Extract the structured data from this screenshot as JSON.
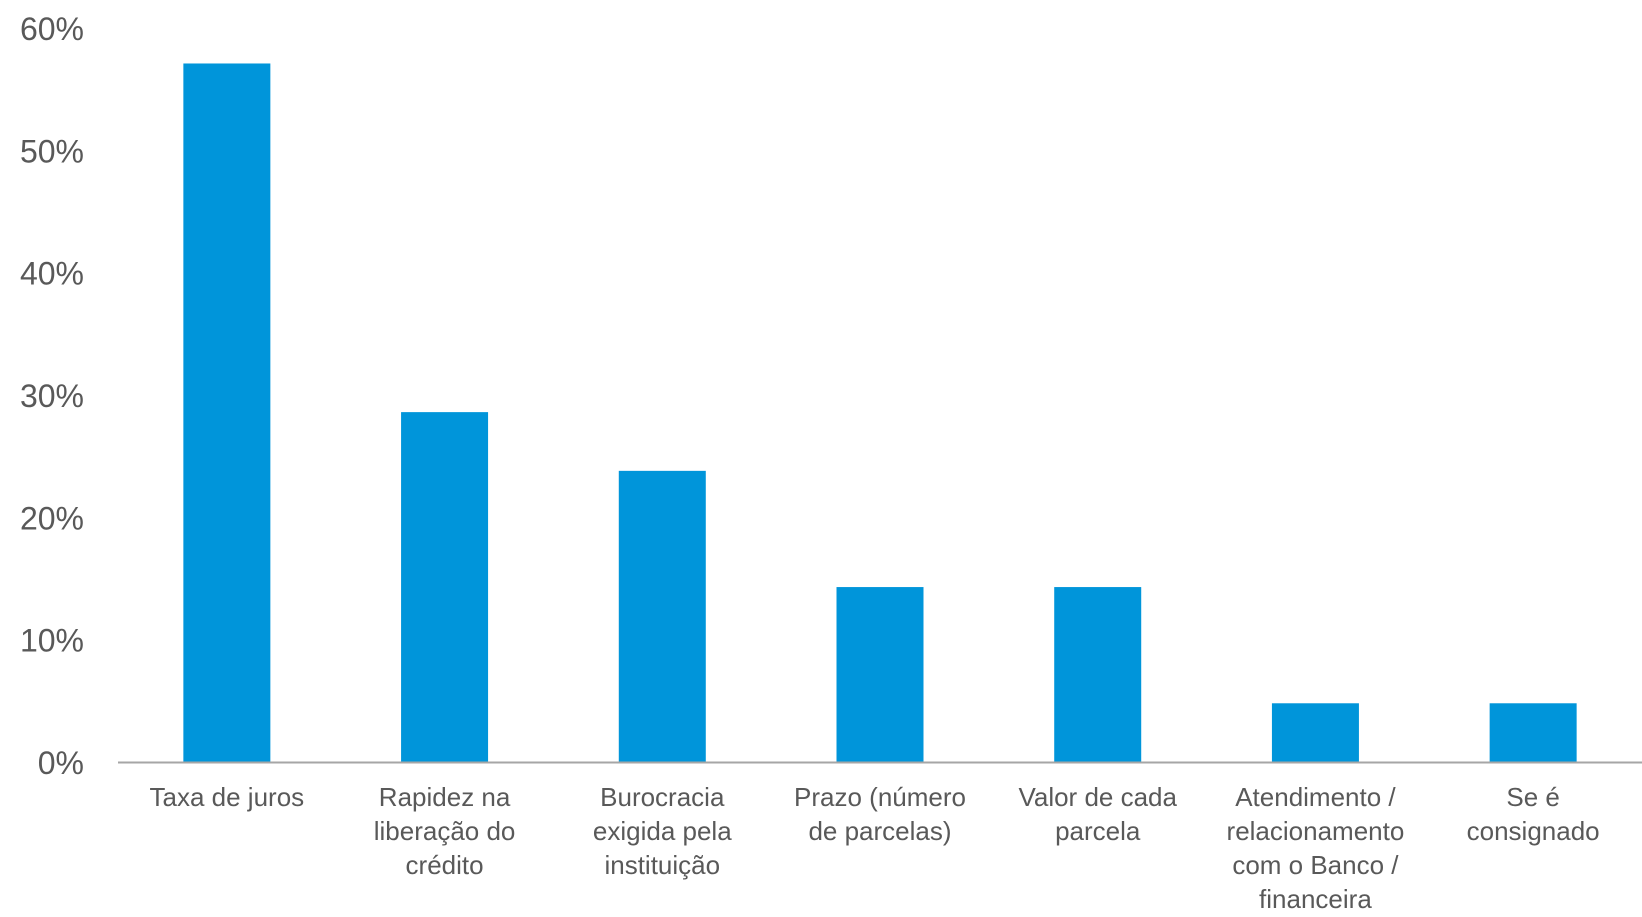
{
  "chart_data": {
    "type": "bar",
    "categories": [
      [
        "Taxa de juros"
      ],
      [
        "Rapidez na",
        "liberação do",
        "crédito"
      ],
      [
        "Burocracia",
        "exigida pela",
        "instituição"
      ],
      [
        "Prazo (número",
        "de parcelas)"
      ],
      [
        "Valor de cada",
        "parcela"
      ],
      [
        "Atendimento /",
        "relacionamento",
        "com o Banco /",
        "financeira"
      ],
      [
        "Se é",
        "consignado"
      ]
    ],
    "values": [
      57.1,
      28.6,
      23.8,
      14.3,
      14.3,
      4.8,
      4.8
    ],
    "ylim": [
      0,
      60
    ],
    "yticks": [
      "0%",
      "10%",
      "20%",
      "30%",
      "40%",
      "50%",
      "60%"
    ],
    "grid": false,
    "legend": "none",
    "colors": {
      "bar": "#0095DA",
      "axis": "#A6A6A6",
      "text": "#595959"
    }
  }
}
